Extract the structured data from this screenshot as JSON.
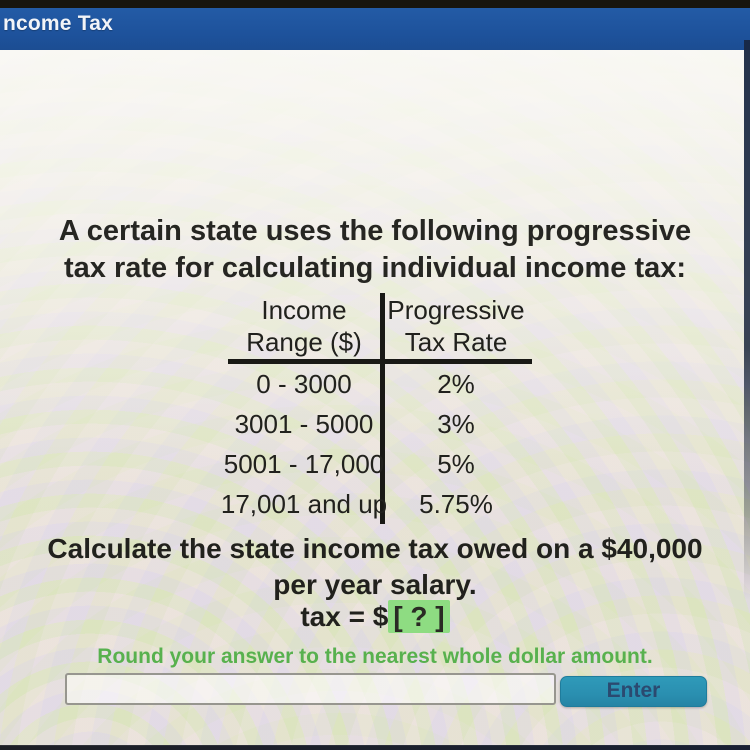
{
  "header": {
    "title": "ncome Tax"
  },
  "problem": {
    "intro_line1": "A certain state uses the following progressive",
    "intro_line2": "tax rate for calculating individual income tax:"
  },
  "table": {
    "col1_header_line1": "Income",
    "col1_header_line2": "Range ($)",
    "col2_header_line1": "Progressive",
    "col2_header_line2": "Tax Rate",
    "rows": [
      {
        "range": "0 - 3000",
        "rate": "2%"
      },
      {
        "range": "3001 - 5000",
        "rate": "3%"
      },
      {
        "range": "5001 - 17,000",
        "rate": "5%"
      },
      {
        "range": "17,001 and up",
        "rate": "5.75%"
      }
    ]
  },
  "question": {
    "line1": "Calculate the state income tax owed on a $40,000",
    "line2": "per year salary.",
    "answer_prefix": "tax = $",
    "answer_placeholder": "[ ? ]",
    "hint": "Round your answer to the nearest whole dollar amount."
  },
  "answer": {
    "input_value": "",
    "enter_label": "Enter"
  },
  "colors": {
    "header_blue": "#1d519a",
    "enter_teal": "#2a8fb0",
    "hint_green": "#58b14e",
    "highlight_green": "#8edc82"
  }
}
